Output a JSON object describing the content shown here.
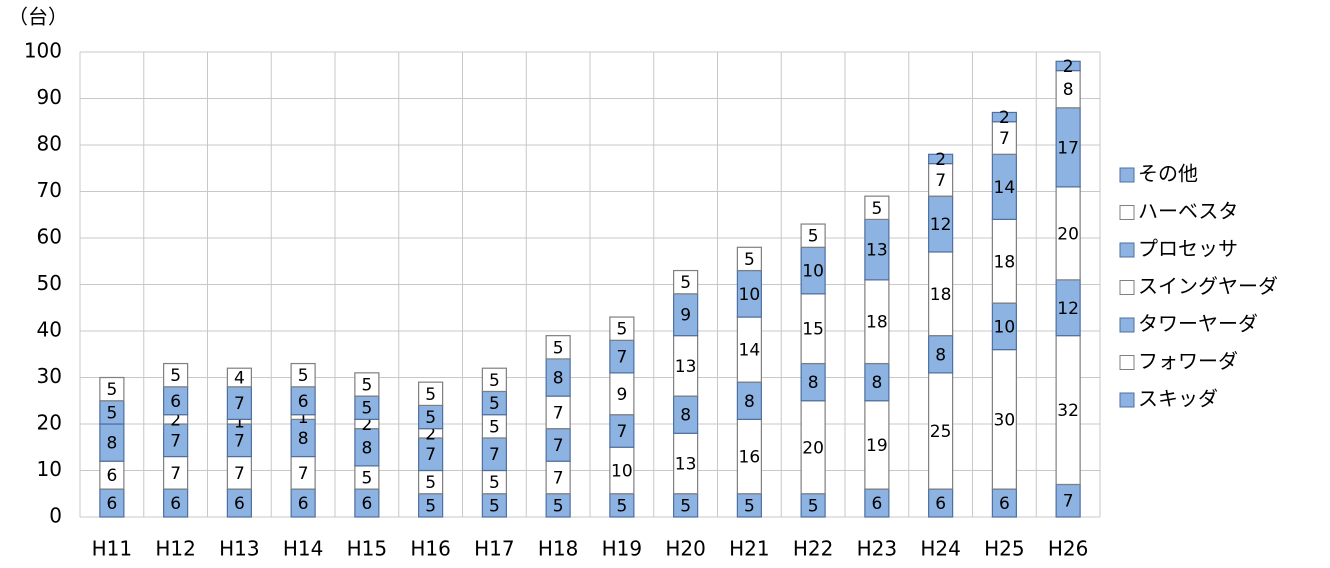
{
  "chart_data": {
    "type": "stacked_bar",
    "y_unit": "（台）",
    "categories": [
      "H11",
      "H12",
      "H13",
      "H14",
      "H15",
      "H16",
      "H17",
      "H18",
      "H19",
      "H20",
      "H21",
      "H22",
      "H23",
      "H24",
      "H25",
      "H26"
    ],
    "series": [
      {
        "name": "スキッダ",
        "color": "#8db3e2",
        "values": [
          6,
          6,
          6,
          6,
          6,
          5,
          5,
          5,
          5,
          5,
          5,
          5,
          6,
          6,
          6,
          7
        ]
      },
      {
        "name": "フォワーダ",
        "color": "#ffffff",
        "values": [
          6,
          7,
          7,
          7,
          5,
          5,
          5,
          7,
          10,
          13,
          16,
          20,
          19,
          25,
          30,
          32
        ]
      },
      {
        "name": "タワーヤーダ",
        "color": "#8db3e2",
        "values": [
          8,
          7,
          7,
          8,
          8,
          7,
          7,
          7,
          7,
          8,
          8,
          8,
          8,
          8,
          10,
          12
        ]
      },
      {
        "name": "スイングヤーダ",
        "color": "#ffffff",
        "values": [
          0,
          2,
          1,
          1,
          2,
          2,
          5,
          7,
          9,
          13,
          14,
          15,
          18,
          18,
          18,
          20
        ]
      },
      {
        "name": "プロセッサ",
        "color": "#8db3e2",
        "values": [
          5,
          6,
          7,
          6,
          5,
          5,
          5,
          8,
          7,
          9,
          10,
          10,
          13,
          12,
          14,
          17
        ]
      },
      {
        "name": "ハーベスタ",
        "color": "#ffffff",
        "values": [
          5,
          5,
          4,
          5,
          5,
          5,
          5,
          5,
          5,
          5,
          5,
          5,
          5,
          7,
          7,
          8
        ]
      },
      {
        "name": "その他",
        "color": "#8db3e2",
        "values": [
          0,
          0,
          0,
          0,
          0,
          0,
          0,
          0,
          0,
          0,
          0,
          0,
          0,
          2,
          2,
          2
        ]
      }
    ],
    "ylim": [
      0,
      100
    ],
    "yticks": [
      0,
      10,
      20,
      30,
      40,
      50,
      60,
      70,
      80,
      90,
      100
    ],
    "grid": true,
    "legend": "right"
  }
}
